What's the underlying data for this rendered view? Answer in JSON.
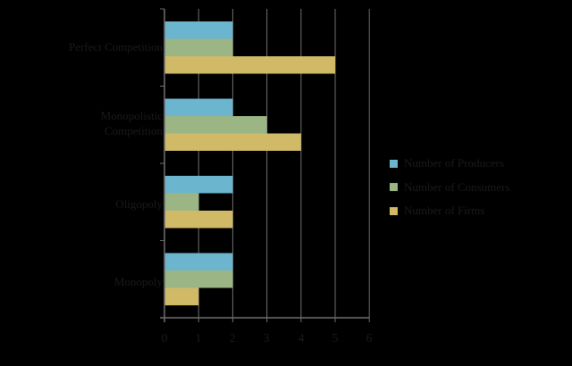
{
  "chart_data": {
    "type": "bar",
    "orientation": "horizontal",
    "title": "",
    "xlabel": "",
    "ylabel": "",
    "categories": [
      "Perfect Competition",
      "Monopolistic Competition",
      "Oligopoly",
      "Monopoly"
    ],
    "series": [
      {
        "name": "Number of Producers",
        "color": "#6BB5CE",
        "values": [
          2,
          2,
          2,
          2
        ]
      },
      {
        "name": "Number of Consumers",
        "color": "#9BB584",
        "values": [
          2,
          3,
          1,
          2
        ]
      },
      {
        "name": "Number of Firms",
        "color": "#D0BA68",
        "values": [
          5,
          4,
          2,
          1
        ]
      }
    ],
    "xlim": [
      0,
      6
    ],
    "xticks": [
      "0",
      "1",
      "2",
      "3",
      "4",
      "5",
      "6"
    ],
    "grid": true,
    "legend_position": "right"
  },
  "labels": {
    "cat0a": "Perfect Competition",
    "cat1a": "Monopolistic",
    "cat1b": "Competition",
    "cat2a": "Oligopoly",
    "cat3a": "Monopoly"
  },
  "legend": [
    "Number of Producers",
    "Number of Consumers",
    "Number of Firms"
  ],
  "ticks": [
    "0",
    "1",
    "2",
    "3",
    "4",
    "5",
    "6"
  ]
}
